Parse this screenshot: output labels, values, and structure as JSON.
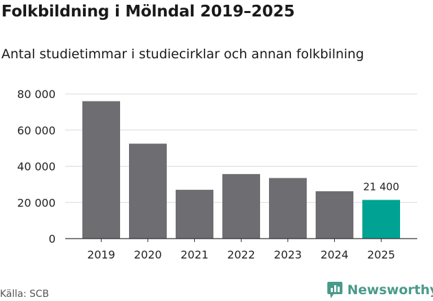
{
  "title": "Folkbildning i Mölndal 2019–2025",
  "subtitle": "Antal studietimmar i studiecirklar och annan folkbilning",
  "source": "Källa: SCB",
  "brand": {
    "name": "Newsworthy",
    "icon": "newsworthy-logo-icon"
  },
  "colors": {
    "bar": "#6e6e72",
    "highlight": "#00a393",
    "grid": "#d9d9d9",
    "axis": "#333333",
    "brand": "#4a9a8a"
  },
  "chart_data": {
    "type": "bar",
    "title": "Folkbildning i Mölndal 2019–2025",
    "subtitle": "Antal studietimmar i studiecirklar och annan folkbilning",
    "xlabel": "",
    "ylabel": "",
    "categories": [
      "2019",
      "2020",
      "2021",
      "2022",
      "2023",
      "2024",
      "2025"
    ],
    "values": [
      76000,
      52500,
      27000,
      35700,
      33500,
      26200,
      21400
    ],
    "highlight_index": 6,
    "data_labels": [
      {
        "index": 6,
        "text": "21 400"
      }
    ],
    "ylim": [
      0,
      80000
    ],
    "yticks": [
      0,
      20000,
      40000,
      60000,
      80000
    ],
    "ytick_labels": [
      "0",
      "20 000",
      "40 000",
      "60 000",
      "80 000"
    ],
    "grid": true
  }
}
